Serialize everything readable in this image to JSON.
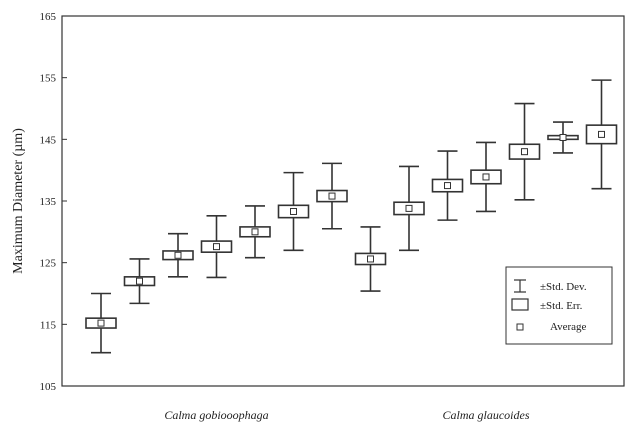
{
  "chart_data": {
    "type": "box",
    "ylabel": "Maximum Diameter (µm)",
    "ylim": [
      105,
      165
    ],
    "yticks": [
      "105",
      "115",
      "125",
      "135",
      "145",
      "155",
      "165"
    ],
    "groups": [
      {
        "label": "Calma gobiooophaga",
        "series_start": 0,
        "series_end": 6
      },
      {
        "label": "Calma glaucoides",
        "series_start": 7,
        "series_end": 13
      }
    ],
    "legend": {
      "placement": "bottom-right",
      "items": [
        "±Std. Dev.",
        "±Std. Err.",
        "Average"
      ]
    },
    "series": [
      {
        "mean": 115.2,
        "se": 0.8,
        "sd": 4.8
      },
      {
        "mean": 122.0,
        "se": 0.7,
        "sd": 3.6
      },
      {
        "mean": 126.2,
        "se": 0.7,
        "sd": 3.5
      },
      {
        "mean": 127.6,
        "se": 0.9,
        "sd": 5.0
      },
      {
        "mean": 130.0,
        "se": 0.8,
        "sd": 4.2
      },
      {
        "mean": 133.3,
        "se": 1.0,
        "sd": 6.3
      },
      {
        "mean": 135.8,
        "se": 0.9,
        "sd": 5.3
      },
      {
        "mean": 125.6,
        "se": 0.9,
        "sd": 5.2
      },
      {
        "mean": 133.8,
        "se": 1.0,
        "sd": 6.8
      },
      {
        "mean": 137.5,
        "se": 1.0,
        "sd": 5.6
      },
      {
        "mean": 138.9,
        "se": 1.1,
        "sd": 5.6
      },
      {
        "mean": 143.0,
        "se": 1.2,
        "sd": 7.8
      },
      {
        "mean": 145.3,
        "se": 0.3,
        "sd": 2.5
      },
      {
        "mean": 145.8,
        "se": 1.5,
        "sd": 8.8
      }
    ]
  }
}
